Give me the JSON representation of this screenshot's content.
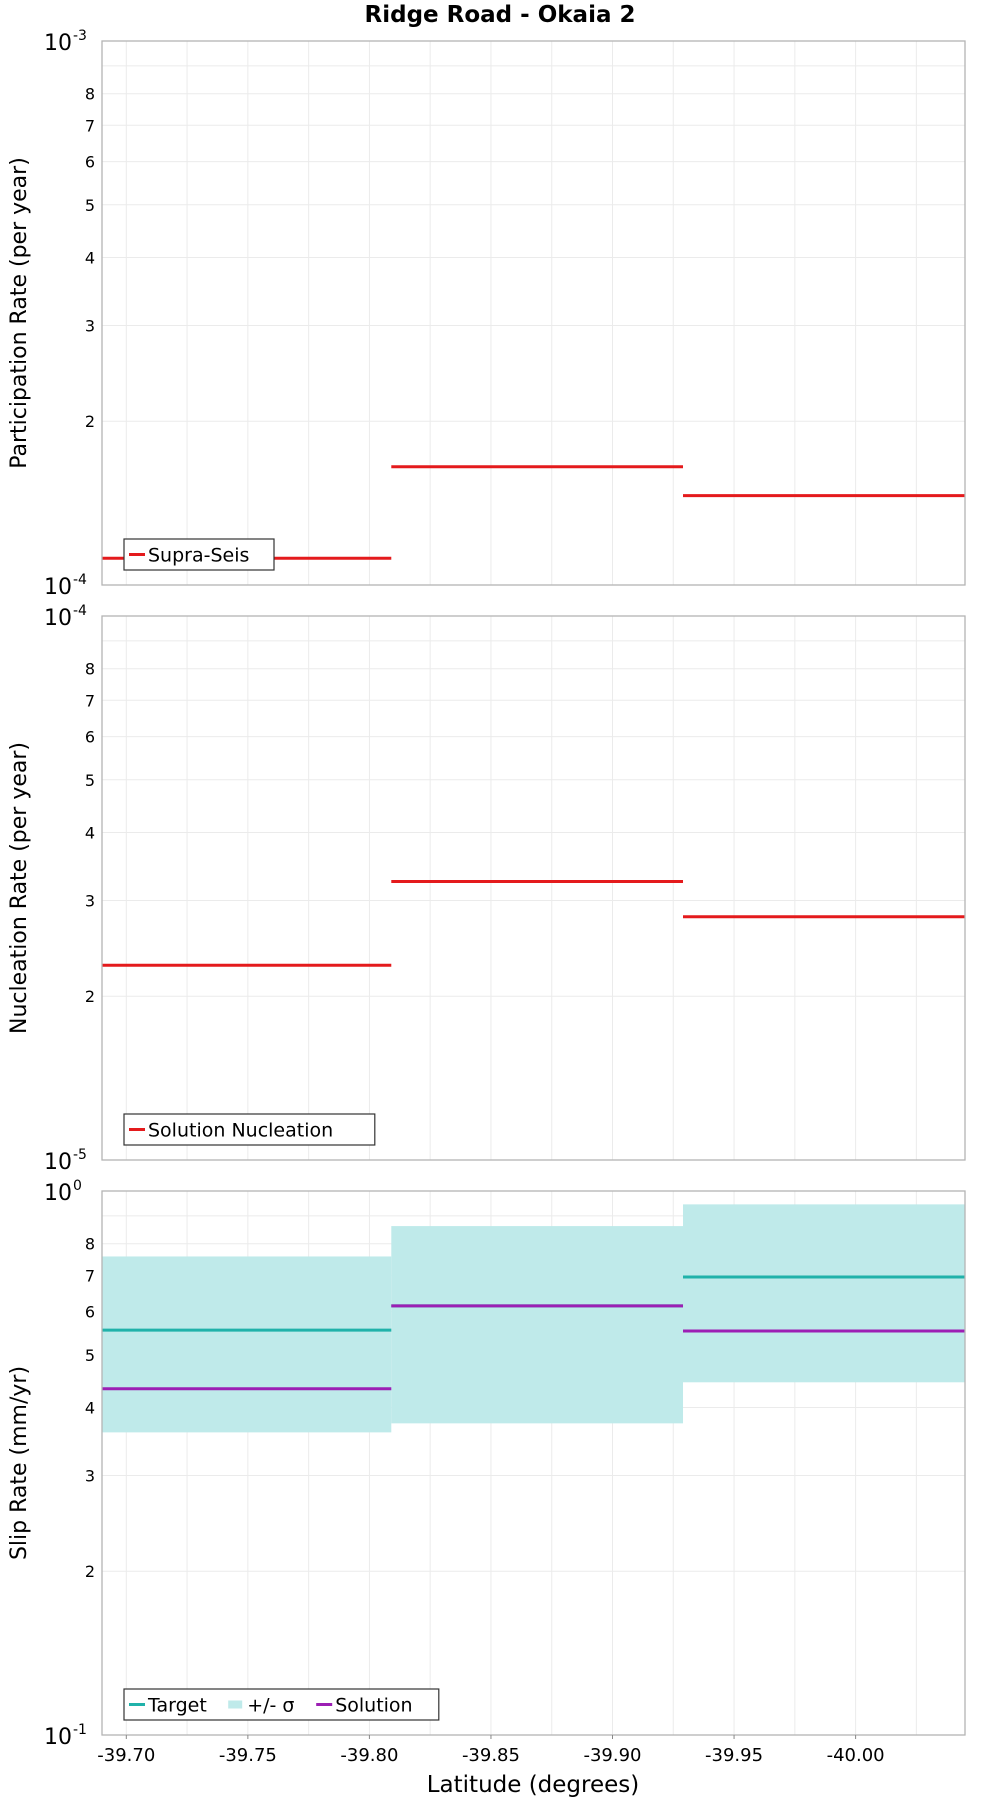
{
  "title": "Ridge Road - Okaia 2",
  "xlabel": "Latitude (degrees)",
  "xlim": [
    -39.69,
    -40.045
  ],
  "xticks": [
    "-39.70",
    "-39.75",
    "-39.80",
    "-39.85",
    "-39.90",
    "-39.95",
    "-40.00"
  ],
  "chart_data": [
    {
      "type": "line",
      "ylabel": "Participation Rate (per year)",
      "yscale": "log",
      "ylim": [
        0.0001,
        0.001
      ],
      "ytick_decade_labels": [
        {
          "base": "10",
          "exp": "-4"
        },
        {
          "base": "10",
          "exp": "-3"
        }
      ],
      "ytick_minor_labels": [
        "2",
        "3",
        "4",
        "5",
        "6",
        "7",
        "8"
      ],
      "grid": true,
      "legend_position": "bottom-left",
      "series": [
        {
          "name": "Supra-Seis",
          "color": "#e41a1c",
          "steps": [
            {
              "x0": -39.69,
              "x1": -39.809,
              "y": 0.000112
            },
            {
              "x0": -39.809,
              "x1": -39.929,
              "y": 0.000165
            },
            {
              "x0": -39.929,
              "x1": -40.045,
              "y": 0.000146
            }
          ]
        }
      ]
    },
    {
      "type": "line",
      "ylabel": "Nucleation Rate (per year)",
      "yscale": "log",
      "ylim": [
        1e-05,
        0.0001
      ],
      "ytick_decade_labels": [
        {
          "base": "10",
          "exp": "-5"
        },
        {
          "base": "10",
          "exp": "-4"
        }
      ],
      "ytick_minor_labels": [
        "2",
        "3",
        "4",
        "5",
        "6",
        "7",
        "8"
      ],
      "grid": true,
      "legend_position": "bottom-left",
      "series": [
        {
          "name": "Solution Nucleation",
          "color": "#e41a1c",
          "steps": [
            {
              "x0": -39.69,
              "x1": -39.809,
              "y": 2.28e-05
            },
            {
              "x0": -39.809,
              "x1": -39.929,
              "y": 3.25e-05
            },
            {
              "x0": -39.929,
              "x1": -40.045,
              "y": 2.8e-05
            }
          ]
        }
      ]
    },
    {
      "type": "area",
      "ylabel": "Slip Rate (mm/yr)",
      "yscale": "log",
      "ylim": [
        0.1,
        1.0
      ],
      "ytick_decade_labels": [
        {
          "base": "10",
          "exp": "-1"
        },
        {
          "base": "10",
          "exp": "0"
        }
      ],
      "ytick_minor_labels": [
        "2",
        "3",
        "4",
        "5",
        "6",
        "7",
        "8"
      ],
      "grid": true,
      "legend_position": "bottom-left",
      "series": [
        {
          "name": "Target",
          "color": "#20b2aa",
          "steps": [
            {
              "x0": -39.69,
              "x1": -39.809,
              "y": 0.555
            },
            {
              "x0": -39.809,
              "x1": -39.929,
              "y": 0.615
            },
            {
              "x0": -39.929,
              "x1": -40.045,
              "y": 0.695
            }
          ]
        },
        {
          "name": "+/- σ",
          "color": "#bfeaea",
          "band": [
            {
              "x0": -39.69,
              "x1": -39.809,
              "low": 0.36,
              "high": 0.758
            },
            {
              "x0": -39.809,
              "x1": -39.929,
              "low": 0.374,
              "high": 0.862
            },
            {
              "x0": -39.929,
              "x1": -40.045,
              "low": 0.445,
              "high": 0.945
            }
          ]
        },
        {
          "name": "Solution",
          "color": "#9c1fb4",
          "steps": [
            {
              "x0": -39.69,
              "x1": -39.809,
              "y": 0.433
            },
            {
              "x0": -39.809,
              "x1": -39.929,
              "y": 0.615
            },
            {
              "x0": -39.929,
              "x1": -40.045,
              "y": 0.553
            }
          ]
        }
      ]
    }
  ]
}
